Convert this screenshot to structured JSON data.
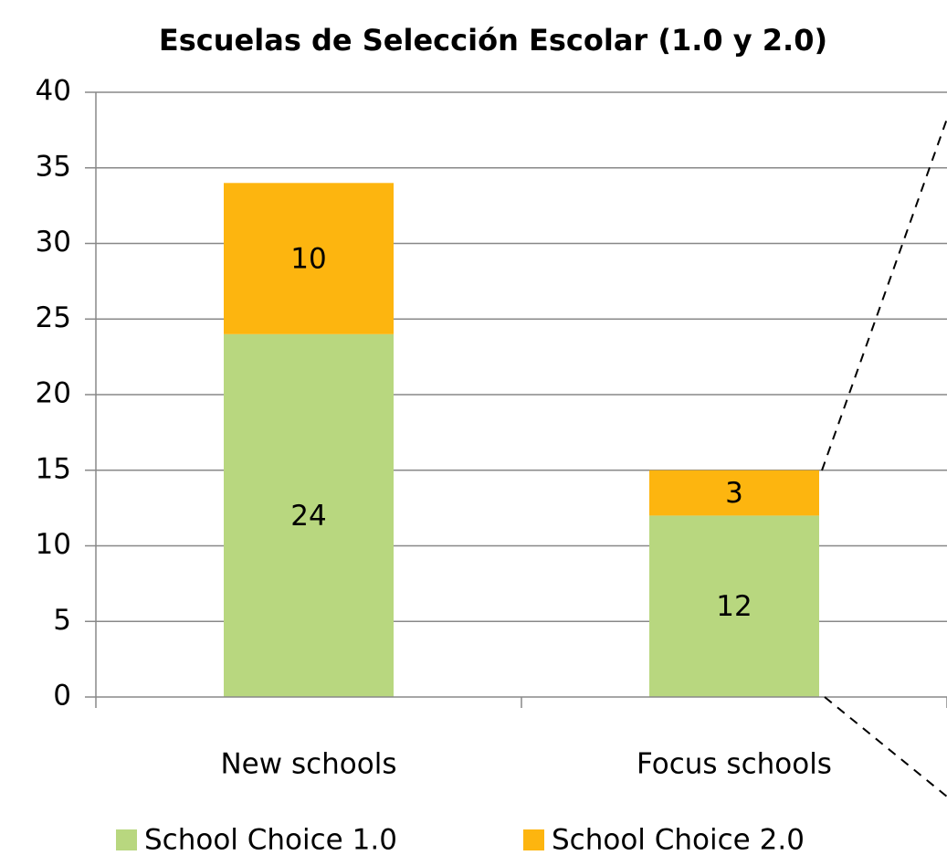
{
  "chart_data": {
    "type": "stacked_bar",
    "title": "Escuelas de Selección Escolar (1.0 y 2.0)",
    "categories": [
      "New schools",
      "Focus schools"
    ],
    "series": [
      {
        "name": "School Choice 1.0",
        "color": "#b8d77f",
        "values": [
          24,
          12
        ]
      },
      {
        "name": "School Choice 2.0",
        "color": "#fdb50f",
        "values": [
          10,
          3
        ]
      }
    ],
    "ylim": [
      0,
      40
    ],
    "yticks": [
      0,
      5,
      10,
      15,
      20,
      25,
      30,
      35,
      40
    ],
    "grid": true,
    "legend": "bottom"
  }
}
